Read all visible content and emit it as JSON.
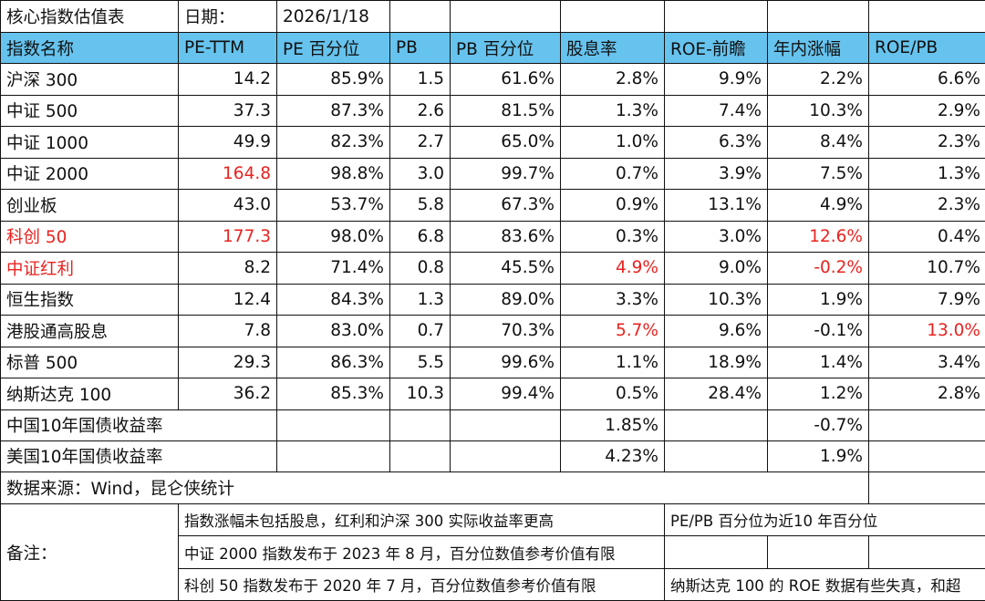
{
  "header": {
    "title": "核心指数估值表",
    "date_label": "日期：",
    "date": "2026/1/18"
  },
  "header_color": "#66c3ee",
  "highlight_color": "#e8231f",
  "table": {
    "columns": [
      "指数名称",
      "PE-TTM",
      "PE 百分位",
      "PB",
      "PB 百分位",
      "股息率",
      "ROE-前瞻",
      "年内涨幅",
      "ROE/PB"
    ],
    "rows": [
      {
        "cells": [
          "沪深 300",
          "14.2",
          "85.9%",
          "1.5",
          "61.6%",
          "2.8%",
          "9.9%",
          "2.2%",
          "6.6%"
        ],
        "red": []
      },
      {
        "cells": [
          "中证 500",
          "37.3",
          "87.3%",
          "2.6",
          "81.5%",
          "1.3%",
          "7.4%",
          "10.3%",
          "2.9%"
        ],
        "red": []
      },
      {
        "cells": [
          "中证 1000",
          "49.9",
          "82.3%",
          "2.7",
          "65.0%",
          "1.0%",
          "6.3%",
          "8.4%",
          "2.3%"
        ],
        "red": []
      },
      {
        "cells": [
          "中证 2000",
          "164.8",
          "98.8%",
          "3.0",
          "99.7%",
          "0.7%",
          "3.9%",
          "7.5%",
          "1.3%"
        ],
        "red": [
          1
        ]
      },
      {
        "cells": [
          "创业板",
          "43.0",
          "53.7%",
          "5.8",
          "67.3%",
          "0.9%",
          "13.1%",
          "4.9%",
          "2.3%"
        ],
        "red": []
      },
      {
        "cells": [
          "科创 50",
          "177.3",
          "98.0%",
          "6.8",
          "83.6%",
          "0.3%",
          "3.0%",
          "12.6%",
          "0.4%"
        ],
        "red": [
          0,
          1,
          7
        ]
      },
      {
        "cells": [
          "中证红利",
          "8.2",
          "71.4%",
          "0.8",
          "45.5%",
          "4.9%",
          "9.0%",
          "-0.2%",
          "10.7%"
        ],
        "red": [
          0,
          5,
          7
        ]
      },
      {
        "cells": [
          "恒生指数",
          "12.4",
          "84.3%",
          "1.3",
          "89.0%",
          "3.3%",
          "10.3%",
          "1.9%",
          "7.9%"
        ],
        "red": []
      },
      {
        "cells": [
          "港股通高股息",
          "7.8",
          "83.0%",
          "0.7",
          "70.3%",
          "5.7%",
          "9.6%",
          "-0.1%",
          "13.0%"
        ],
        "red": [
          5,
          8
        ]
      },
      {
        "cells": [
          "标普 500",
          "29.3",
          "86.3%",
          "5.5",
          "99.6%",
          "1.1%",
          "18.9%",
          "1.4%",
          "3.4%"
        ],
        "red": []
      },
      {
        "cells": [
          "纳斯达克 100",
          "36.2",
          "85.3%",
          "10.3",
          "99.4%",
          "0.5%",
          "28.4%",
          "1.2%",
          "2.8%"
        ],
        "red": []
      }
    ]
  },
  "yields": [
    {
      "label": "中国10年国债收益率",
      "dividend_yield": "1.85%",
      "ytd_change": "-0.7%"
    },
    {
      "label": "美国10年国债收益率",
      "dividend_yield": "4.23%",
      "ytd_change": "1.9%"
    }
  ],
  "source": "数据来源：Wind，昆仑侠统计",
  "notes": {
    "label": "备注：",
    "items": [
      {
        "left": "指数涨幅未包括股息，红利和沪深 300 实际收益率更高",
        "right": "PE/PB 百分位为近10 年百分位"
      },
      {
        "left": "中证 2000 指数发布于 2023 年 8 月，百分位数值参考价值有限"
      },
      {
        "left": "科创 50 指数发布于 2020 年 7 月，百分位数值参考价值有限",
        "right": "纳斯达克 100 的 ROE 数据有些失真，和超"
      }
    ]
  }
}
